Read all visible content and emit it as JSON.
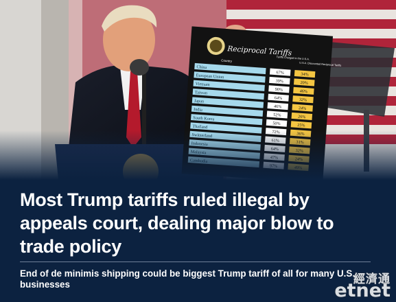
{
  "article": {
    "headline": "Most Trump tariffs ruled illegal by appeals court, dealing major blow to trade policy",
    "subheadline": "End of de minimis shipping could be biggest Trump tariff of all for many U.S. businesses"
  },
  "photo": {
    "board_title": "Reciprocal Tariffs",
    "column_country": "Country",
    "column_charged": "Tariffs Charged to the U.S.A.",
    "column_reciprocal": "U.S.A. Discounted Reciprocal Tariffs",
    "rows": [
      {
        "country": "China",
        "charged": "67%",
        "reciprocal": "34%"
      },
      {
        "country": "European Union",
        "charged": "39%",
        "reciprocal": "20%"
      },
      {
        "country": "Vietnam",
        "charged": "90%",
        "reciprocal": "46%"
      },
      {
        "country": "Taiwan",
        "charged": "64%",
        "reciprocal": "32%"
      },
      {
        "country": "Japan",
        "charged": "46%",
        "reciprocal": "24%"
      },
      {
        "country": "India",
        "charged": "52%",
        "reciprocal": "26%"
      },
      {
        "country": "South Korea",
        "charged": "50%",
        "reciprocal": "25%"
      },
      {
        "country": "Thailand",
        "charged": "72%",
        "reciprocal": "36%"
      },
      {
        "country": "Switzerland",
        "charged": "61%",
        "reciprocal": "31%"
      },
      {
        "country": "Indonesia",
        "charged": "64%",
        "reciprocal": "32%"
      },
      {
        "country": "Malaysia",
        "charged": "47%",
        "reciprocal": "24%"
      },
      {
        "country": "Cambodia",
        "charged": "97%",
        "reciprocal": "49%"
      }
    ]
  },
  "watermark": {
    "brand_cn": "經濟通",
    "brand_en": "etnet"
  },
  "colors": {
    "background": "#0c2240",
    "text": "#ffffff",
    "board_blue": "#a6d9ec",
    "board_yellow": "#f4c542"
  }
}
